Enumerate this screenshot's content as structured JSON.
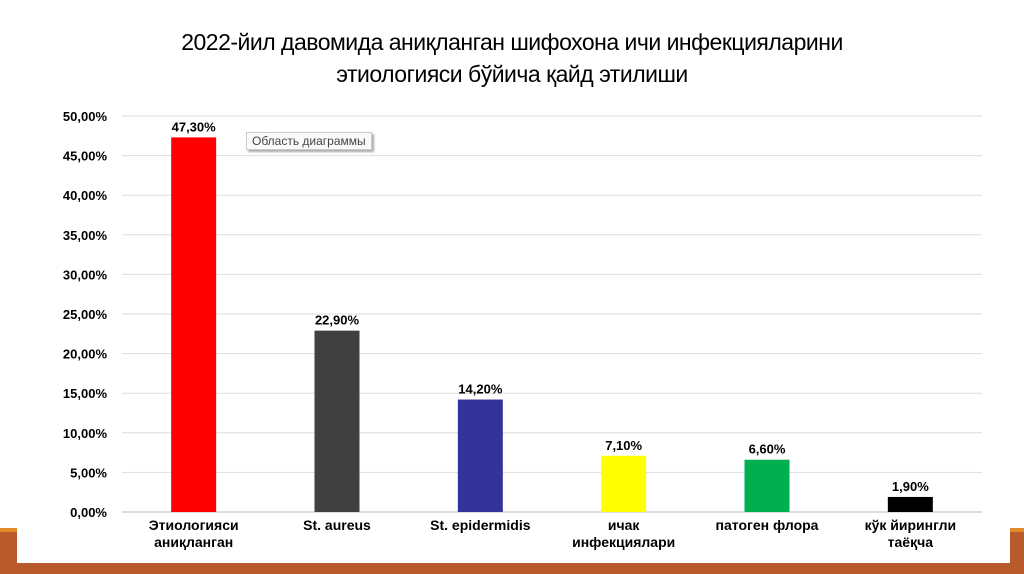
{
  "title_lines": [
    "2022-йил давомида аниқланган шифохона ичи инфекцияларини",
    "этиологияси бўйича қайд этилиши"
  ],
  "tooltip": "Область диаграммы",
  "chart_data": {
    "type": "bar",
    "title": "2022-йил давомида аниқланган шифохона ичи инфекцияларини этиологияси бўйича қайд этилиши",
    "categories": [
      [
        "Этиологияси",
        "аниқланган"
      ],
      [
        "St. aureus"
      ],
      [
        "St. epidermidis"
      ],
      [
        "ичак",
        "инфекциялари"
      ],
      [
        "патоген флора"
      ],
      [
        "кўк йирингли",
        "таёқча"
      ]
    ],
    "values": [
      47.3,
      22.9,
      14.2,
      7.1,
      6.6,
      1.9
    ],
    "data_labels": [
      "47,30%",
      "22,90%",
      "14,20%",
      "7,10%",
      "6,60%",
      "1,90%"
    ],
    "colors": [
      "#ff0000",
      "#404040",
      "#333399",
      "#ffff00",
      "#00b050",
      "#000000"
    ],
    "ylim": [
      0,
      50
    ],
    "yticks": [
      "0,00%",
      "5,00%",
      "10,00%",
      "15,00%",
      "20,00%",
      "25,00%",
      "30,00%",
      "35,00%",
      "40,00%",
      "45,00%",
      "50,00%"
    ],
    "grid": true,
    "legend": "none"
  }
}
